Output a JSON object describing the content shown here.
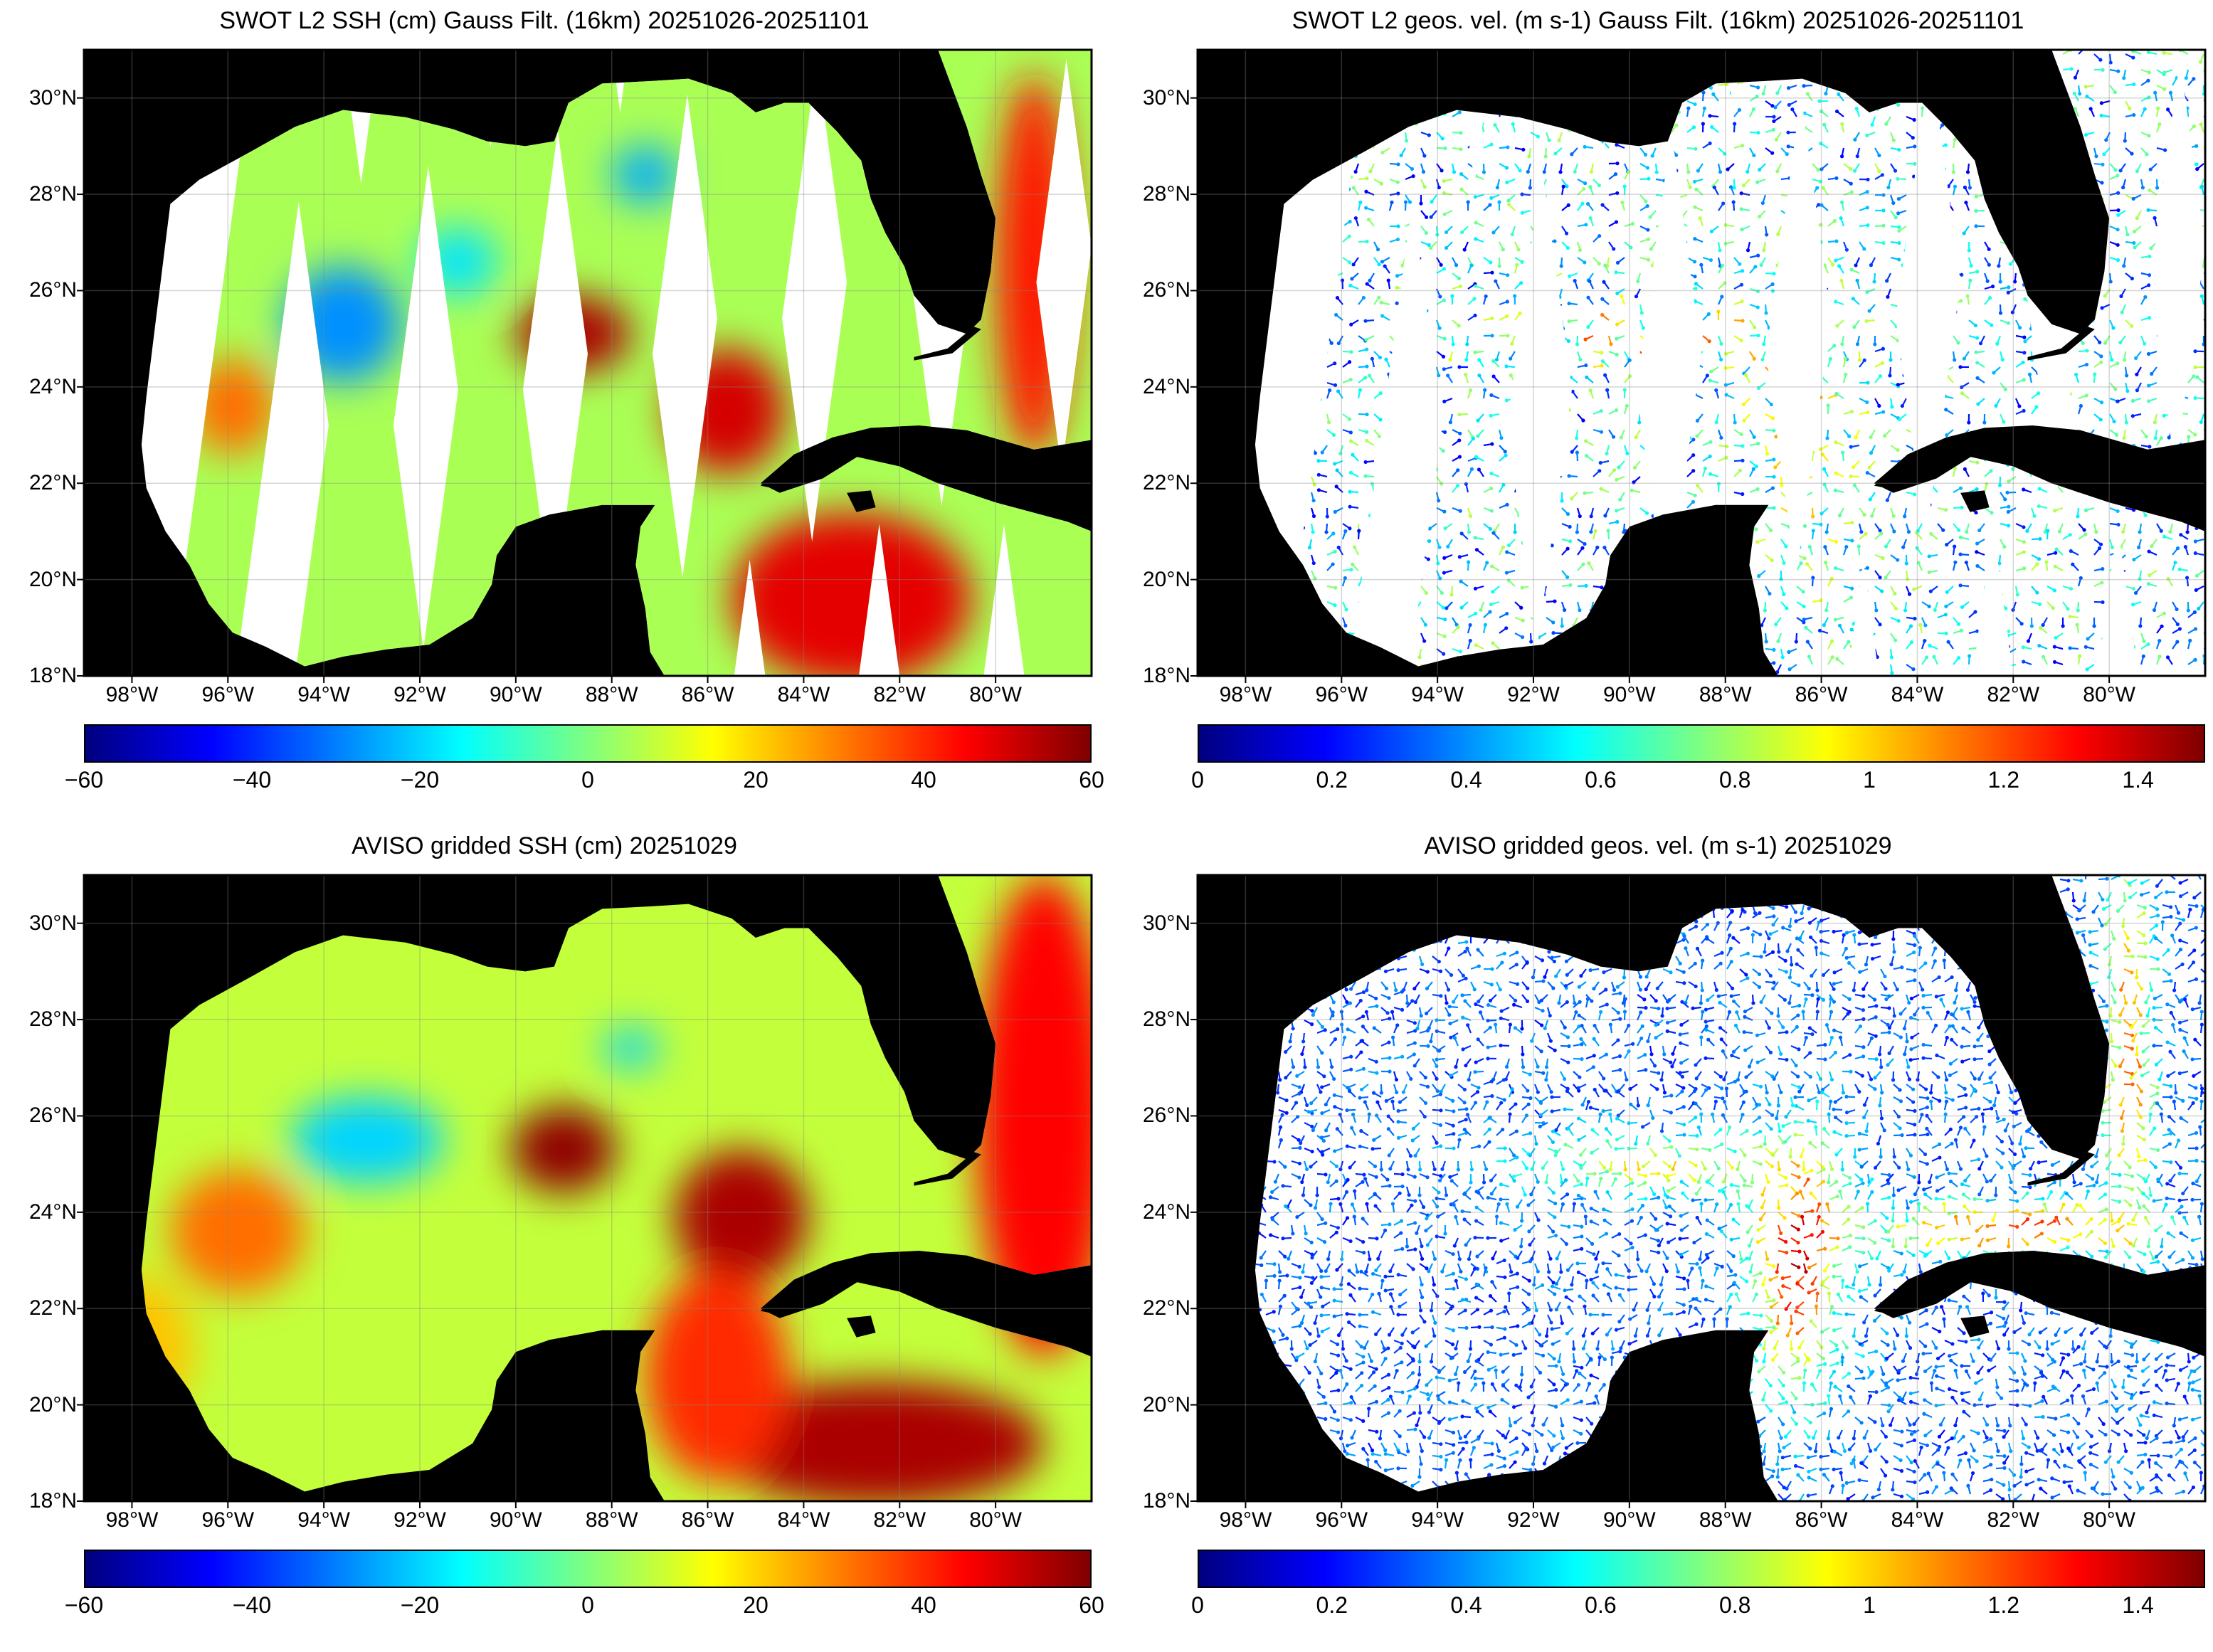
{
  "lat_ticks": [
    "30°N",
    "28°N",
    "26°N",
    "24°N",
    "22°N",
    "20°N",
    "18°N"
  ],
  "lat_values": [
    30,
    28,
    26,
    24,
    22,
    20,
    18
  ],
  "lon_ticks": [
    "98°W",
    "96°W",
    "94°W",
    "92°W",
    "90°W",
    "88°W",
    "86°W",
    "84°W",
    "82°W",
    "80°W"
  ],
  "lon_values": [
    -98,
    -96,
    -94,
    -92,
    -90,
    -88,
    -86,
    -84,
    -82,
    -80
  ],
  "extent": {
    "lon_min": -99.0,
    "lon_max": -78.0,
    "lat_min": 18.0,
    "lat_max": 31.0
  },
  "colormap": [
    "#00007f",
    "#0000ff",
    "#007fff",
    "#00ffff",
    "#7fff7f",
    "#ffff00",
    "#ff7f00",
    "#ff0000",
    "#7f0000"
  ],
  "land_color": "#000000",
  "panels": [
    {
      "id": "swot-ssh",
      "title": "SWOT L2 SSH (cm) Gauss Filt. (16km) 20251026-20251101",
      "variable": "ssh",
      "source": "swot",
      "colorbar": {
        "min": -60,
        "max": 60,
        "ticks": [
          "−60",
          "−40",
          "−20",
          "0",
          "20",
          "40",
          "60"
        ],
        "tick_values": [
          -60,
          -40,
          -20,
          0,
          20,
          40,
          60
        ]
      }
    },
    {
      "id": "swot-vel",
      "title": "SWOT L2 geos. vel. (m s-1) Gauss Filt. (16km) 20251026-20251101",
      "variable": "velocity",
      "source": "swot",
      "colorbar": {
        "min": 0,
        "max": 1.5,
        "ticks": [
          "0",
          "0.2",
          "0.4",
          "0.6",
          "0.8",
          "1",
          "1.2",
          "1.4"
        ],
        "tick_values": [
          0,
          0.2,
          0.4,
          0.6,
          0.8,
          1,
          1.2,
          1.4
        ]
      }
    },
    {
      "id": "aviso-ssh",
      "title": "AVISO gridded SSH (cm) 20251029",
      "variable": "ssh",
      "source": "aviso",
      "colorbar": {
        "min": -60,
        "max": 60,
        "ticks": [
          "−60",
          "−40",
          "−20",
          "0",
          "20",
          "40",
          "60"
        ],
        "tick_values": [
          -60,
          -40,
          -20,
          0,
          20,
          40,
          60
        ]
      }
    },
    {
      "id": "aviso-vel",
      "title": "AVISO gridded geos. vel. (m s-1)  20251029",
      "variable": "velocity",
      "source": "aviso",
      "colorbar": {
        "min": 0,
        "max": 1.5,
        "ticks": [
          "0",
          "0.2",
          "0.4",
          "0.6",
          "0.8",
          "1",
          "1.2",
          "1.4"
        ],
        "tick_values": [
          0,
          0.2,
          0.4,
          0.6,
          0.8,
          1,
          1.2,
          1.4
        ]
      }
    }
  ]
}
